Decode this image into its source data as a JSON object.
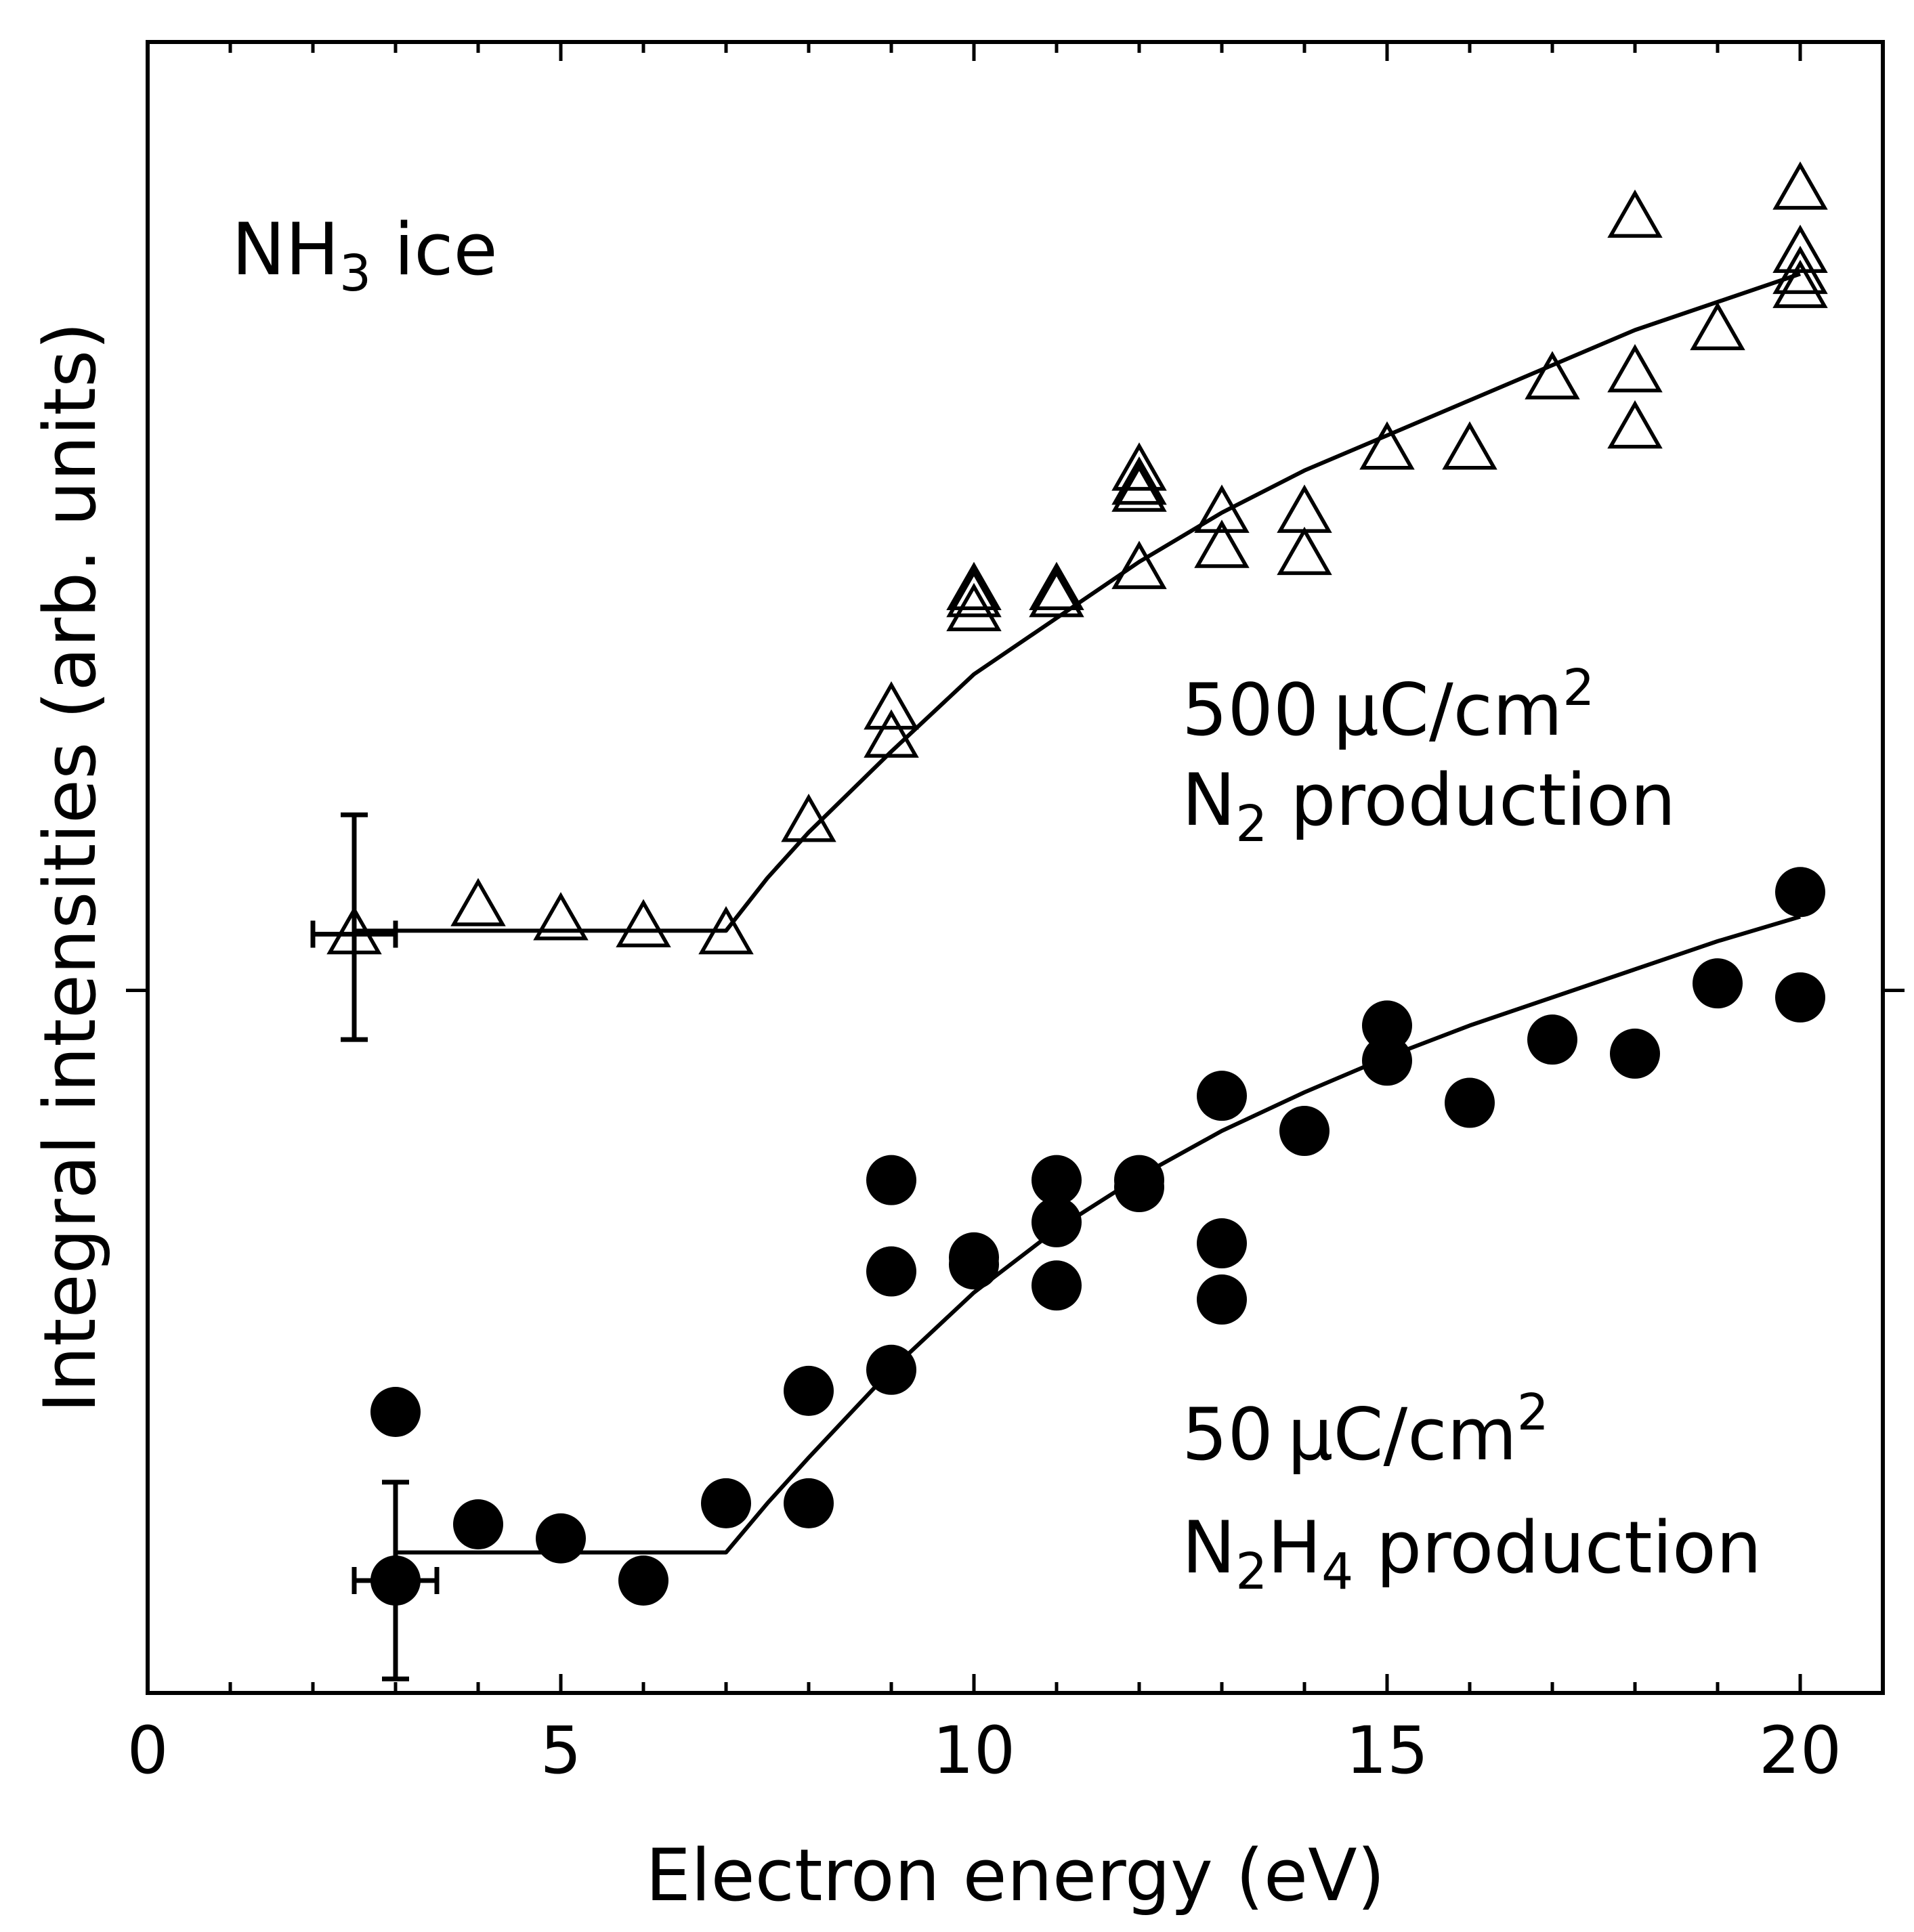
{
  "chart_data": {
    "type": "scatter",
    "title": "",
    "xlabel": "Electron energy (eV)",
    "ylabel": "Integral intensities (arb. units)",
    "xlim": [
      0,
      21
    ],
    "ylim": [
      0,
      2.35
    ],
    "xticks": [
      0,
      5,
      10,
      15,
      20
    ],
    "xtick_labels": [
      "0",
      "5",
      "10",
      "15",
      "20"
    ],
    "yticks": [
      1.0
    ],
    "grid": false,
    "annotations": [
      {
        "id": "ice",
        "text": "NH",
        "sub": "3",
        "after": " ice"
      },
      {
        "id": "n2-dose",
        "text": "500 μC/cm",
        "sup": "2"
      },
      {
        "id": "n2-prod",
        "text": "N",
        "sub": "2",
        "after": " production"
      },
      {
        "id": "n2h4-dose",
        "text": "50 μC/cm",
        "sup": "2"
      },
      {
        "id": "n2h4-prod",
        "text": "N",
        "sub": "2",
        "mid": "H",
        "sub2": "4",
        "after": " production"
      }
    ],
    "series": [
      {
        "name": "N2 production (500 μC/cm2)",
        "marker": "open-triangle",
        "color": "#000000",
        "points": [
          [
            2.5,
            1.08
          ],
          [
            4,
            1.12
          ],
          [
            5,
            1.1
          ],
          [
            6,
            1.09
          ],
          [
            7,
            1.08
          ],
          [
            8,
            1.24
          ],
          [
            9,
            1.4
          ],
          [
            9,
            1.36
          ],
          [
            10,
            1.57
          ],
          [
            10,
            1.56
          ],
          [
            10,
            1.54
          ],
          [
            11,
            1.57
          ],
          [
            11,
            1.56
          ],
          [
            12,
            1.6
          ],
          [
            12,
            1.71
          ],
          [
            12,
            1.74
          ],
          [
            12,
            1.72
          ],
          [
            13,
            1.68
          ],
          [
            13,
            1.63
          ],
          [
            14,
            1.68
          ],
          [
            14,
            1.62
          ],
          [
            15,
            1.77
          ],
          [
            16,
            1.77
          ],
          [
            17,
            1.87
          ],
          [
            18,
            1.88
          ],
          [
            18,
            1.8
          ],
          [
            18,
            2.1
          ],
          [
            19,
            1.94
          ],
          [
            20,
            2.0
          ],
          [
            20,
            2.02
          ],
          [
            20,
            2.05
          ],
          [
            20,
            2.14
          ]
        ],
        "errorbar": {
          "x": 2.5,
          "y": 1.08,
          "xerr": 0.5,
          "yerr_lower": 0.15,
          "yerr_upper": 0.17
        },
        "fit": [
          [
            2.5,
            1.085
          ],
          [
            7,
            1.085
          ],
          [
            7.5,
            1.16
          ],
          [
            8,
            1.225
          ],
          [
            9,
            1.34
          ],
          [
            10,
            1.45
          ],
          [
            11,
            1.53
          ],
          [
            12,
            1.61
          ],
          [
            13,
            1.68
          ],
          [
            14,
            1.74
          ],
          [
            15,
            1.79
          ],
          [
            16,
            1.84
          ],
          [
            17,
            1.89
          ],
          [
            18,
            1.94
          ],
          [
            19,
            1.98
          ],
          [
            20,
            2.02
          ]
        ]
      },
      {
        "name": "N2H4 production (50 μC/cm2)",
        "marker": "filled-circle",
        "color": "#000000",
        "points": [
          [
            3,
            0.4
          ],
          [
            3,
            0.16
          ],
          [
            4,
            0.24
          ],
          [
            5,
            0.22
          ],
          [
            6,
            0.16
          ],
          [
            7,
            0.27
          ],
          [
            8,
            0.43
          ],
          [
            8,
            0.27
          ],
          [
            9,
            0.73
          ],
          [
            9,
            0.6
          ],
          [
            9,
            0.46
          ],
          [
            10,
            0.62
          ],
          [
            10,
            0.61
          ],
          [
            11,
            0.73
          ],
          [
            11,
            0.67
          ],
          [
            11,
            0.58
          ],
          [
            12,
            0.73
          ],
          [
            12,
            0.72
          ],
          [
            13,
            0.85
          ],
          [
            13,
            0.64
          ],
          [
            13,
            0.56
          ],
          [
            14,
            0.8
          ],
          [
            15,
            0.95
          ],
          [
            15,
            0.9
          ],
          [
            16,
            0.84
          ],
          [
            17,
            0.93
          ],
          [
            18,
            0.91
          ],
          [
            19,
            1.01
          ],
          [
            20,
            1.14
          ],
          [
            20,
            0.99
          ]
        ],
        "errorbar": {
          "x": 3,
          "y": 0.16,
          "xerr": 0.5,
          "yerr_lower": 0.14,
          "yerr_upper": 0.14
        },
        "fit": [
          [
            3,
            0.2
          ],
          [
            7,
            0.2
          ],
          [
            7.5,
            0.27
          ],
          [
            8,
            0.335
          ],
          [
            9,
            0.46
          ],
          [
            10,
            0.57
          ],
          [
            11,
            0.66
          ],
          [
            12,
            0.735
          ],
          [
            13,
            0.8
          ],
          [
            14,
            0.855
          ],
          [
            15,
            0.905
          ],
          [
            16,
            0.95
          ],
          [
            17,
            0.99
          ],
          [
            18,
            1.03
          ],
          [
            19,
            1.07
          ],
          [
            20,
            1.105
          ]
        ]
      }
    ]
  }
}
